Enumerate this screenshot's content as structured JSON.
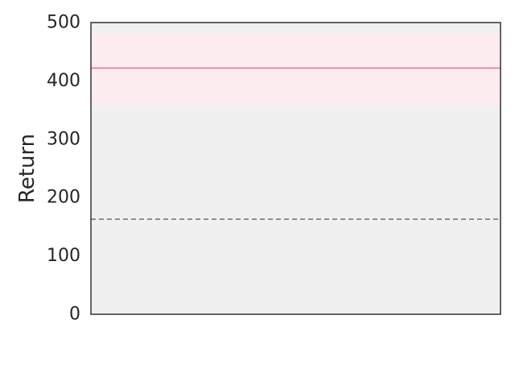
{
  "chart_data": {
    "type": "line",
    "title": "",
    "xlabel": "",
    "ylabel": "Return",
    "ylim": [
      0,
      500
    ],
    "yticks": [
      0,
      100,
      200,
      300,
      400,
      500
    ],
    "yticks_labels": [
      "0",
      "100",
      "200",
      "300",
      "400",
      "500"
    ],
    "grid": false,
    "series": [
      {
        "style": "solid",
        "color": "#e8728f",
        "value": 422,
        "band": [
          358,
          481
        ],
        "band_color": "#fdecef"
      },
      {
        "style": "dashed",
        "color": "#707070",
        "value": 163
      }
    ],
    "plot_background": "#f0f0f0",
    "axis_color": "#333333",
    "text_color": "#262626"
  }
}
